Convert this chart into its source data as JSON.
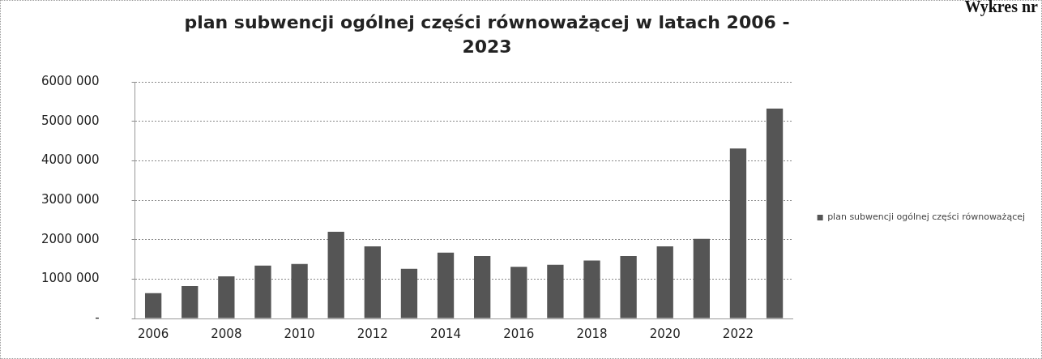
{
  "chart_data": {
    "type": "bar",
    "title": "plan subwencji ogólnej części równoważącej w latach 2006 - 2023",
    "annotations": [
      "Wykres nr"
    ],
    "categories": [
      "2006",
      null,
      "2008",
      null,
      "2010",
      null,
      "2012",
      null,
      "2014",
      null,
      "2016",
      null,
      "2018",
      null,
      "2020",
      null,
      "2022",
      null
    ],
    "series": [
      {
        "name": "plan subwencji ogólnej części równoważącej",
        "color": "#555555",
        "values": [
          640000,
          820000,
          1070000,
          1340000,
          1380000,
          2200000,
          1830000,
          1260000,
          1670000,
          1580000,
          1310000,
          1360000,
          1470000,
          1580000,
          1830000,
          2020000,
          4310000,
          5320000
        ]
      }
    ],
    "ylim": [
      0,
      6000000
    ],
    "yticks": [
      {
        "value": 0,
        "label": "-"
      },
      {
        "value": 1000000,
        "label": "1000 000"
      },
      {
        "value": 2000000,
        "label": "2000 000"
      },
      {
        "value": 3000000,
        "label": "3000 000"
      },
      {
        "value": 4000000,
        "label": "4000 000"
      },
      {
        "value": 5000000,
        "label": "5000 000"
      },
      {
        "value": 6000000,
        "label": "6000 000"
      }
    ],
    "grid": "y",
    "legend": "right"
  }
}
